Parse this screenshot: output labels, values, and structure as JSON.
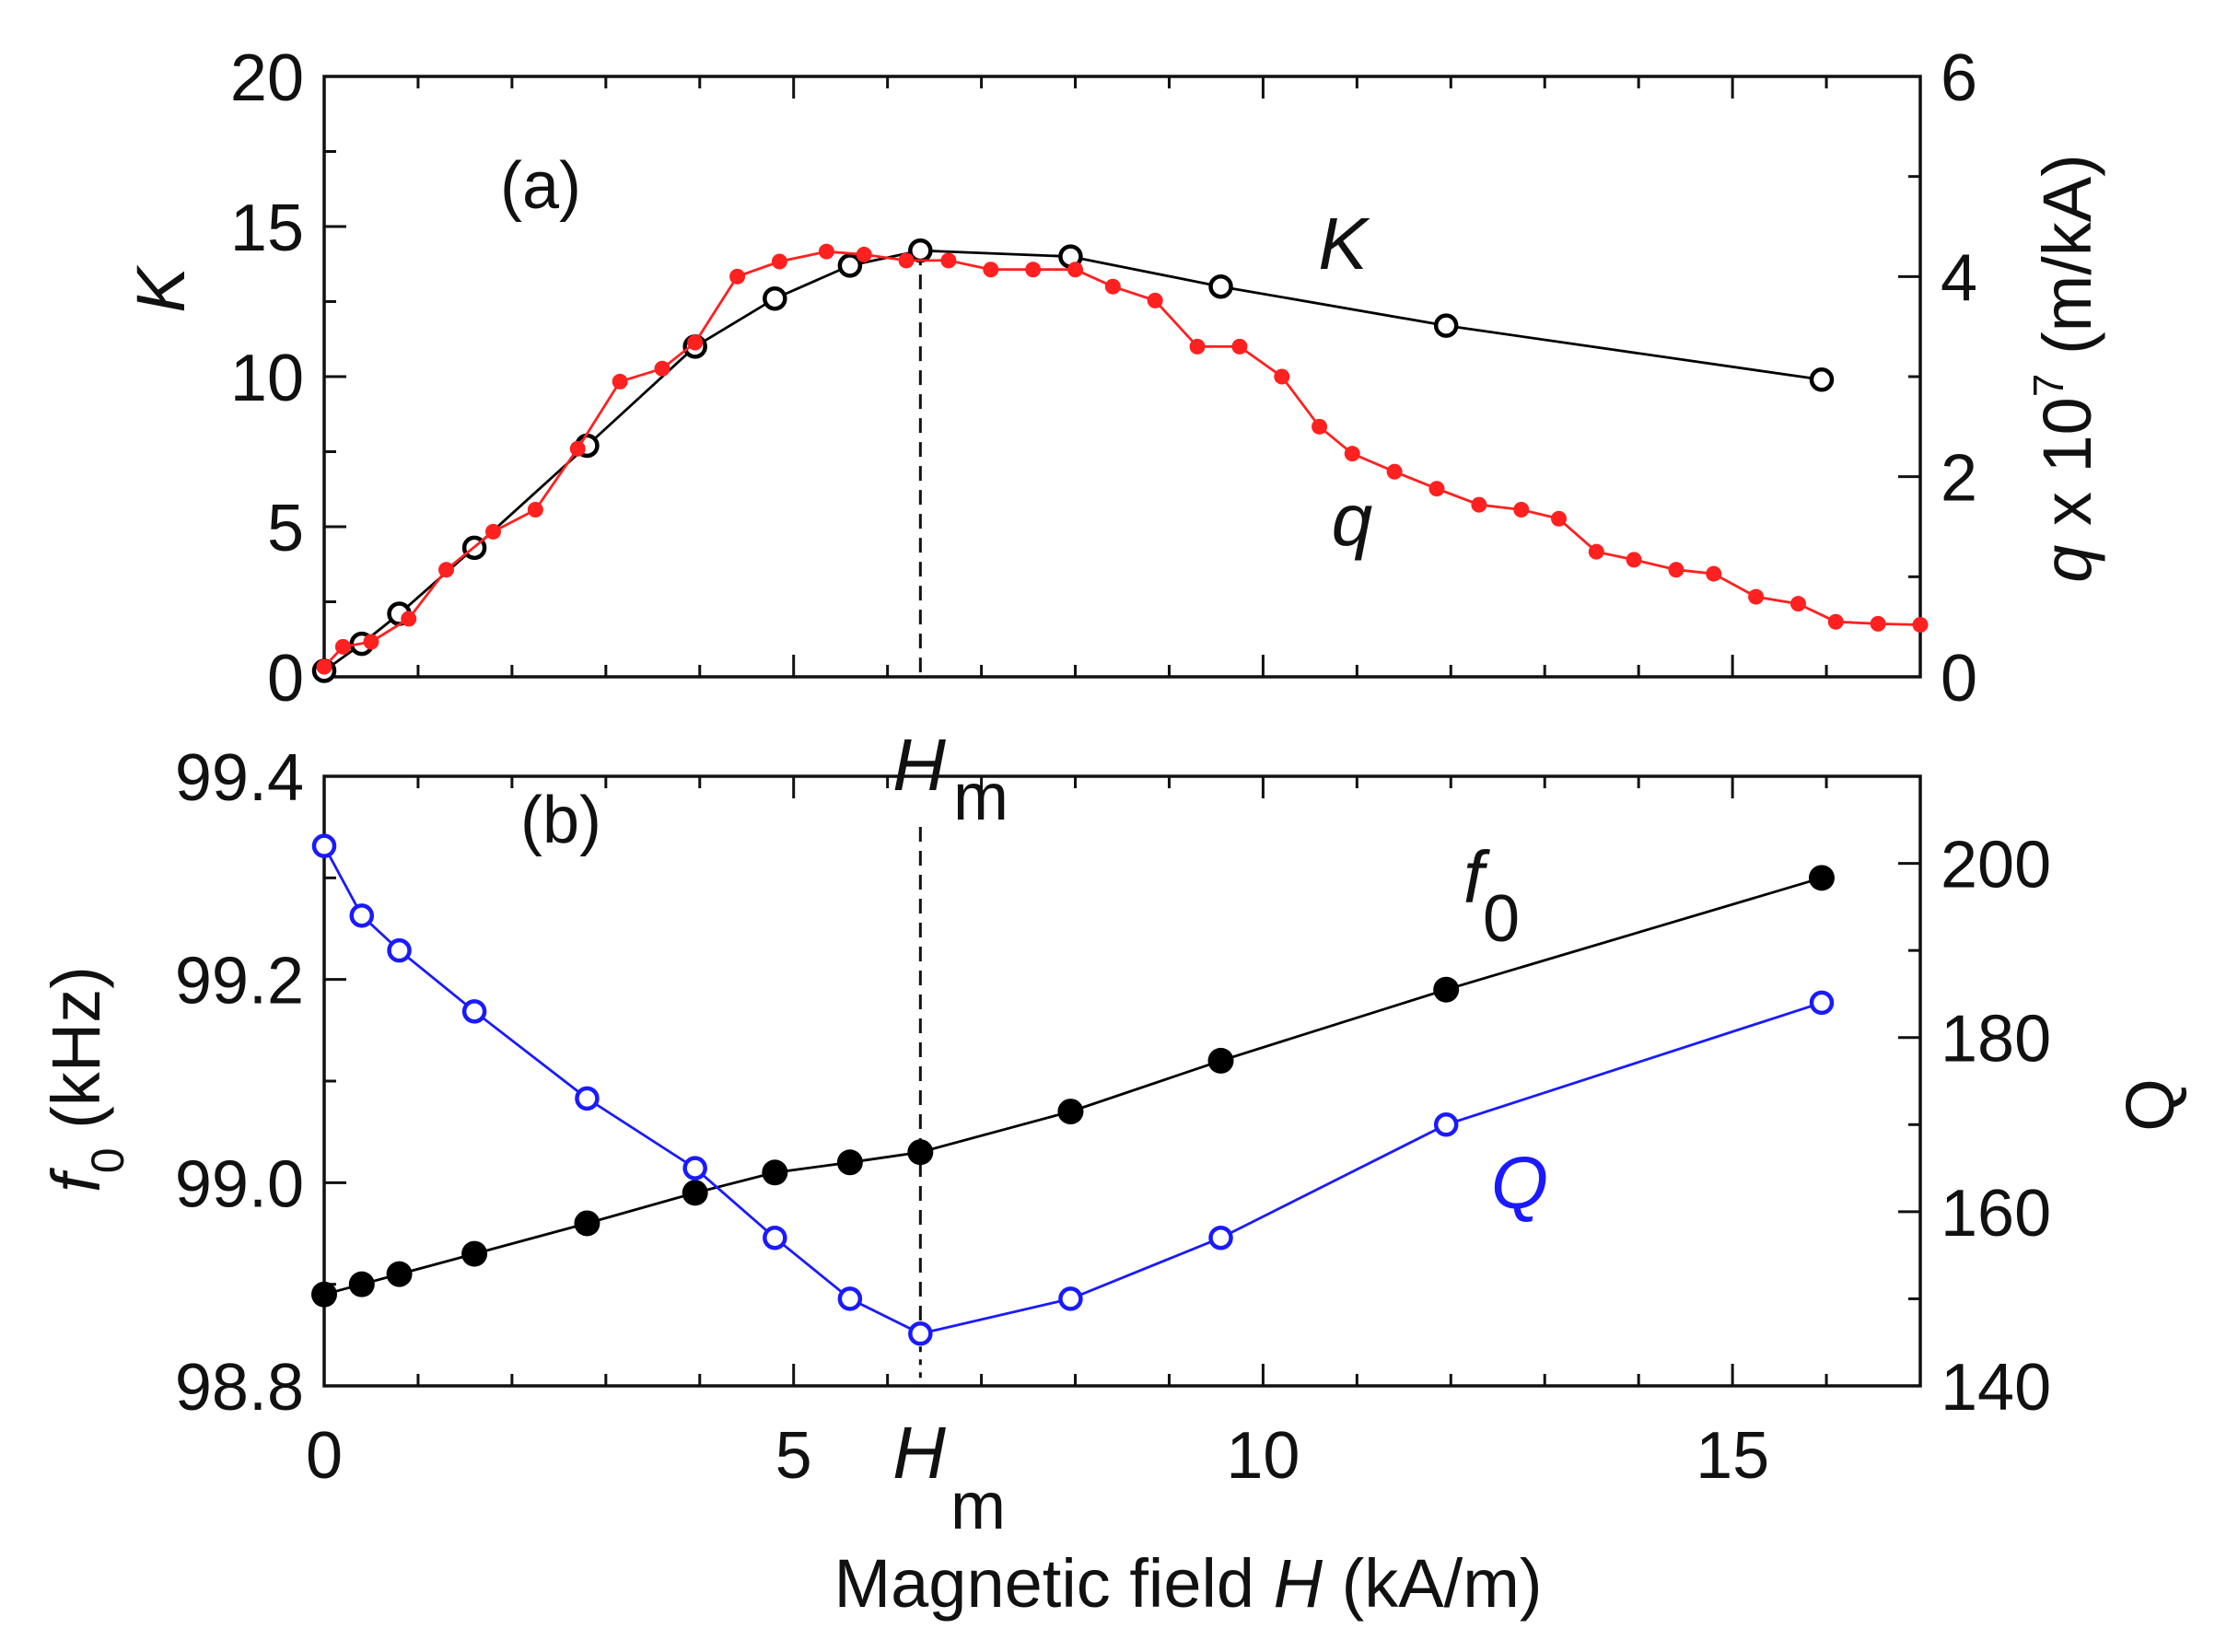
{
  "chart_data": [
    {
      "type": "line",
      "panel_label": "(a)",
      "xlim": [
        0,
        17
      ],
      "ylim_left": [
        0,
        20
      ],
      "ylim_right": [
        0,
        6
      ],
      "x_ticks": [
        "0",
        "5",
        "10",
        "15"
      ],
      "y_ticks_left": [
        "0",
        "5",
        "10",
        "15",
        "20"
      ],
      "y_ticks_right": [
        "0",
        "2",
        "4",
        "6"
      ],
      "ylabel_left": "K",
      "ylabel_right": {
        "italic": "q",
        "rest": " x 10",
        "sup": "7",
        "unit": " (m/kA)"
      },
      "annotation": {
        "main": "H",
        "sub": "m",
        "x": 6.35
      },
      "series": [
        {
          "name": "K",
          "axis": "left",
          "marker": "open-circle",
          "color": "#000000",
          "x": [
            0,
            0.4,
            0.8,
            1.6,
            2.8,
            3.95,
            4.8,
            5.6,
            6.35,
            7.95,
            9.55,
            11.95,
            15.95
          ],
          "y": [
            0.2,
            1.1,
            2.1,
            4.3,
            7.7,
            11.0,
            12.6,
            13.7,
            14.2,
            14.0,
            13.0,
            11.7,
            9.9
          ]
        },
        {
          "name": "q",
          "axis": "right",
          "marker": "filled-circle",
          "color": "#ff2020",
          "x": [
            0,
            0.2,
            0.5,
            0.9,
            1.3,
            1.8,
            2.25,
            2.7,
            3.15,
            3.6,
            3.95,
            4.4,
            4.85,
            5.35,
            5.75,
            6.2,
            6.65,
            7.1,
            7.55,
            8.0,
            8.4,
            8.85,
            9.3,
            9.75,
            10.2,
            10.6,
            10.95,
            11.4,
            11.85,
            12.3,
            12.75,
            13.15,
            13.55,
            13.95,
            14.4,
            14.8,
            15.25,
            15.7,
            16.1,
            16.55,
            17.0
          ],
          "y": [
            0.1,
            0.3,
            0.35,
            0.58,
            1.07,
            1.45,
            1.67,
            2.28,
            2.95,
            3.08,
            3.34,
            4.0,
            4.15,
            4.25,
            4.22,
            4.16,
            4.16,
            4.07,
            4.07,
            4.07,
            3.9,
            3.76,
            3.3,
            3.3,
            3.0,
            2.5,
            2.23,
            2.05,
            1.88,
            1.72,
            1.67,
            1.58,
            1.25,
            1.17,
            1.07,
            1.03,
            0.8,
            0.73,
            0.55,
            0.53,
            0.52
          ]
        }
      ]
    },
    {
      "type": "line",
      "panel_label": "(b)",
      "xlim": [
        0,
        17
      ],
      "ylim_left": [
        98.8,
        99.4
      ],
      "ylim_right": [
        140,
        210
      ],
      "x_ticks": [
        "0",
        "5",
        "10",
        "15"
      ],
      "y_ticks_left": [
        "98.8",
        "99.0",
        "99.2",
        "99.4"
      ],
      "y_ticks_right": [
        "140",
        "160",
        "180",
        "200"
      ],
      "xlabel": {
        "pre": "Magnetic field ",
        "italic": "H",
        "post": " (kA/m)"
      },
      "ylabel_left": {
        "italic": "f",
        "sub": "0",
        "unit": " (kHz)"
      },
      "ylabel_right": "Q",
      "annotation": {
        "main": "H",
        "sub": "m",
        "x": 6.35
      },
      "series": [
        {
          "name": "f0",
          "label_main": "f",
          "label_sub": "0",
          "axis": "left",
          "marker": "filled-circle",
          "color": "#000000",
          "x": [
            0,
            0.4,
            0.8,
            1.6,
            2.8,
            3.95,
            4.8,
            5.6,
            6.35,
            7.95,
            9.55,
            11.95,
            15.95
          ],
          "y": [
            98.89,
            98.9,
            98.91,
            98.93,
            98.96,
            98.99,
            99.01,
            99.02,
            99.03,
            99.07,
            99.12,
            99.19,
            99.3
          ]
        },
        {
          "name": "Q",
          "axis": "right",
          "marker": "open-circle",
          "color": "#1a1aff",
          "x": [
            0,
            0.4,
            0.8,
            1.6,
            2.8,
            3.95,
            4.8,
            5.6,
            6.35,
            7.95,
            9.55,
            11.95,
            15.95
          ],
          "y": [
            202,
            194,
            190,
            183,
            173,
            165,
            157,
            150,
            146,
            150,
            157,
            170,
            184
          ]
        }
      ]
    }
  ]
}
